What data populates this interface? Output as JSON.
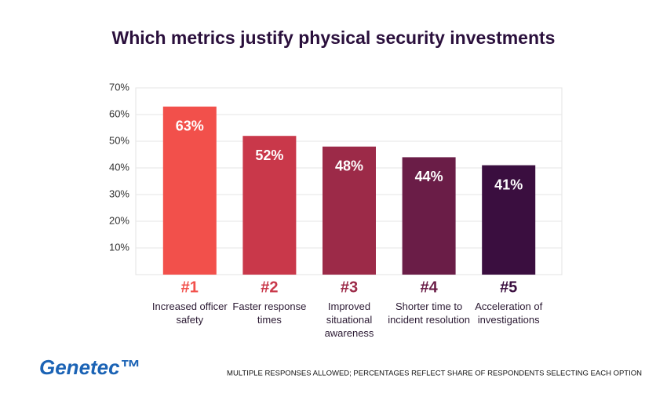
{
  "chart_data": {
    "type": "bar",
    "title": "Which metrics justify physical security investments",
    "ranks": [
      "#1",
      "#2",
      "#3",
      "#4",
      "#5"
    ],
    "categories": [
      "Increased officer safety",
      "Faster response times",
      "Improved situational awareness",
      "Shorter time to incident resolution",
      "Acceleration of investigations"
    ],
    "values": [
      63,
      52,
      48,
      44,
      41
    ],
    "value_labels": [
      "63%",
      "52%",
      "48%",
      "44%",
      "41%"
    ],
    "colors": [
      "#f2504b",
      "#c9384a",
      "#9c2a48",
      "#6a1d47",
      "#3a0e3f"
    ],
    "ylim": [
      0,
      70
    ],
    "yticks": [
      {
        "value": 10,
        "label": "10%"
      },
      {
        "value": 20,
        "label": "20%"
      },
      {
        "value": 30,
        "label": "30%"
      },
      {
        "value": 40,
        "label": "40%"
      },
      {
        "value": 50,
        "label": "50%"
      },
      {
        "value": 60,
        "label": "60%"
      },
      {
        "value": 70,
        "label": "70%"
      }
    ],
    "grid": true,
    "footnote": "MULTIPLE RESPONSES ALLOWED; PERCENTAGES REFLECT SHARE OF RESPONDENTS SELECTING EACH OPTION",
    "logo": "Genetec™"
  }
}
